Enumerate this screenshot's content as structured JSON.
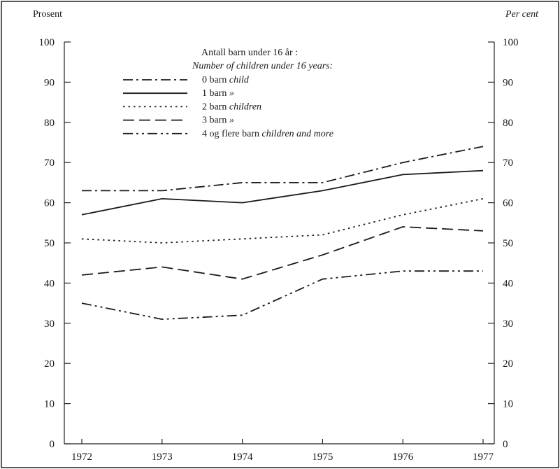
{
  "chart_data": {
    "type": "line",
    "ylabel_left": "Prosent",
    "ylabel_right": "Per cent",
    "x": [
      "1972",
      "1973",
      "1974",
      "1975",
      "1976",
      "1977"
    ],
    "ylim": [
      0,
      100
    ],
    "yticks": [
      "0",
      "10",
      "20",
      "30",
      "40",
      "50",
      "60",
      "70",
      "80",
      "90",
      "100"
    ],
    "grid": false,
    "legend_placement": "top-center",
    "legend_title": "Antall barn under 16 år :",
    "legend_subtitle": "Number of children under 16 years:",
    "series": [
      {
        "name": "0 barn",
        "name_en": "child",
        "dash": "dashdot",
        "values": [
          63,
          63,
          65,
          65,
          70,
          74
        ]
      },
      {
        "name": "1 barn",
        "name_en": "»",
        "dash": "solid",
        "values": [
          57,
          61,
          60,
          63,
          67,
          68
        ]
      },
      {
        "name": "2 barn",
        "name_en": "children",
        "dash": "dotted",
        "values": [
          51,
          50,
          51,
          52,
          57,
          61
        ]
      },
      {
        "name": "3 barn",
        "name_en": "»",
        "dash": "dashed",
        "values": [
          42,
          44,
          41,
          47,
          54,
          53
        ]
      },
      {
        "name": "4 og flere barn",
        "name_en": "children and more",
        "dash": "dashdotdot",
        "values": [
          35,
          31,
          32,
          41,
          43,
          43
        ]
      }
    ]
  }
}
